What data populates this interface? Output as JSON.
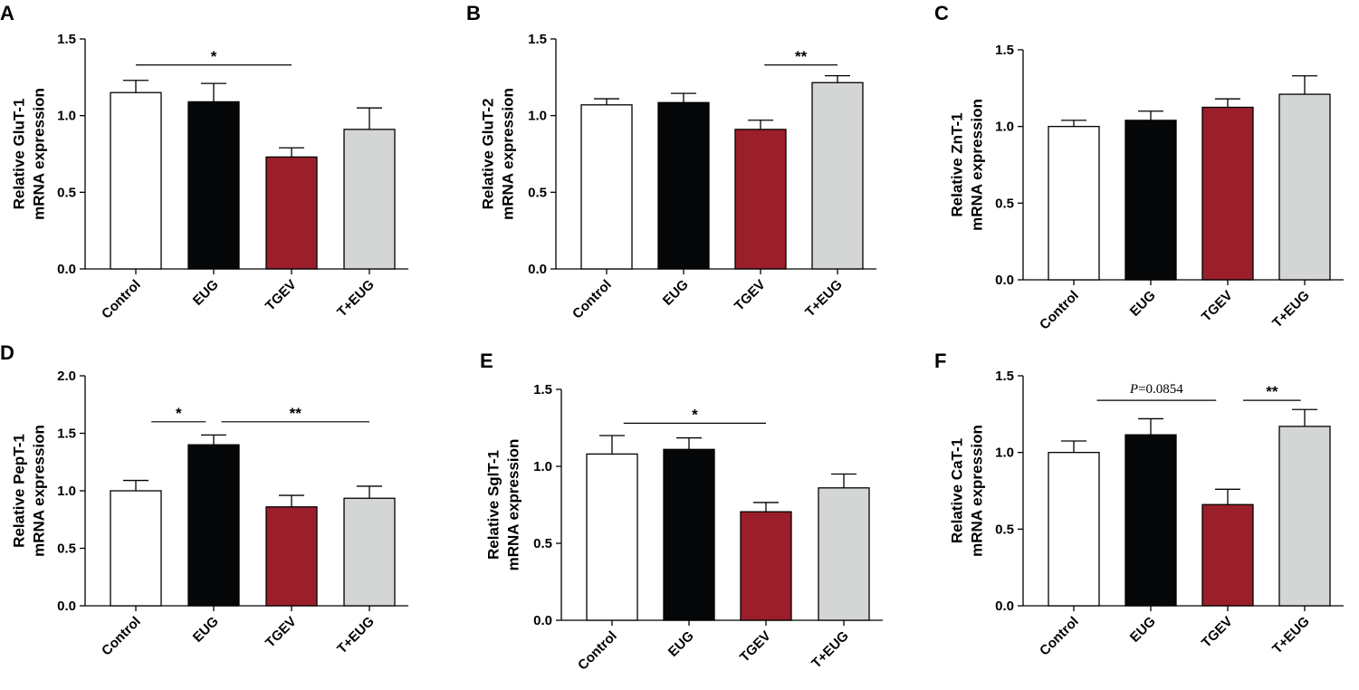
{
  "colors": {
    "Control": "#ffffff",
    "EUG": "#050708",
    "TGEV": "#9b1f2a",
    "T+EUG": "#d4d5d5",
    "stroke": "#000000"
  },
  "chart_data": [
    {
      "type": "bar",
      "panel": "A",
      "ylabel": [
        "Relative GluT-1",
        "mRNA expression"
      ],
      "categories": [
        "Control",
        "EUG",
        "TGEV",
        "T+EUG"
      ],
      "values": [
        1.15,
        1.09,
        0.73,
        0.91
      ],
      "errors": [
        0.08,
        0.12,
        0.06,
        0.14
      ],
      "ylim": [
        0,
        1.5
      ],
      "yticks": [
        "0.0",
        "0.5",
        "1.0",
        "1.5"
      ],
      "significance": [
        {
          "from": 0,
          "to": 2,
          "y": 1.33,
          "label": "*"
        }
      ]
    },
    {
      "type": "bar",
      "panel": "B",
      "ylabel": [
        "Relative GluT-2",
        "mRNA expression"
      ],
      "categories": [
        "Control",
        "EUG",
        "TGEV",
        "T+EUG"
      ],
      "values": [
        1.07,
        1.085,
        0.91,
        1.215
      ],
      "errors": [
        0.04,
        0.06,
        0.06,
        0.045
      ],
      "ylim": [
        0,
        1.5
      ],
      "yticks": [
        "0.0",
        "0.5",
        "1.0",
        "1.5"
      ],
      "significance": [
        {
          "from": 2.05,
          "to": 3.0,
          "y": 1.33,
          "label": "**"
        }
      ]
    },
    {
      "type": "bar",
      "panel": "C",
      "ylabel": [
        "Relative ZnT-1",
        "mRNA expression"
      ],
      "categories": [
        "Control",
        "EUG",
        "TGEV",
        "T+EUG"
      ],
      "values": [
        1.0,
        1.04,
        1.125,
        1.21
      ],
      "errors": [
        0.04,
        0.06,
        0.055,
        0.12
      ],
      "ylim": [
        0,
        1.5
      ],
      "yticks": [
        "0.0",
        "0.5",
        "1.0",
        "1.5"
      ],
      "significance": []
    },
    {
      "type": "bar",
      "panel": "D",
      "ylabel": [
        "Relative PepT-1",
        "mRNA expression"
      ],
      "categories": [
        "Control",
        "EUG",
        "TGEV",
        "T+EUG"
      ],
      "values": [
        1.0,
        1.4,
        0.86,
        0.935
      ],
      "errors": [
        0.09,
        0.085,
        0.1,
        0.105
      ],
      "ylim": [
        0,
        2.0
      ],
      "yticks": [
        "0.0",
        "0.5",
        "1.0",
        "1.5",
        "2.0"
      ],
      "significance": [
        {
          "from": 0.2,
          "to": 0.9,
          "y": 1.6,
          "label": "*"
        },
        {
          "from": 1.1,
          "to": 3.0,
          "y": 1.6,
          "label": "**"
        }
      ]
    },
    {
      "type": "bar",
      "panel": "E",
      "ylabel": [
        "Relative SglT-1",
        "mRNA expression"
      ],
      "categories": [
        "Control",
        "EUG",
        "TGEV",
        "T+EUG"
      ],
      "values": [
        1.08,
        1.11,
        0.705,
        0.86
      ],
      "errors": [
        0.12,
        0.075,
        0.06,
        0.09
      ],
      "ylim": [
        0,
        1.5
      ],
      "yticks": [
        "0.0",
        "0.5",
        "1.0",
        "1.5"
      ],
      "significance": [
        {
          "from": 0.15,
          "to": 2.0,
          "y": 1.28,
          "label": "*"
        }
      ]
    },
    {
      "type": "bar",
      "panel": "F",
      "ylabel": [
        "Relative CaT-1",
        "mRNA expression"
      ],
      "categories": [
        "Control",
        "EUG",
        "TGEV",
        "T+EUG"
      ],
      "values": [
        1.0,
        1.115,
        0.66,
        1.17
      ],
      "errors": [
        0.075,
        0.105,
        0.1,
        0.11
      ],
      "ylim": [
        0,
        1.5
      ],
      "yticks": [
        "0.0",
        "0.5",
        "1.0",
        "1.5"
      ],
      "significance": [
        {
          "from": 0.3,
          "to": 1.85,
          "y": 1.34,
          "label": "P=0.0854",
          "italic_prefix": "P",
          "rest": "=0.0854"
        },
        {
          "from": 2.2,
          "to": 2.95,
          "y": 1.34,
          "label": "**"
        }
      ]
    }
  ]
}
